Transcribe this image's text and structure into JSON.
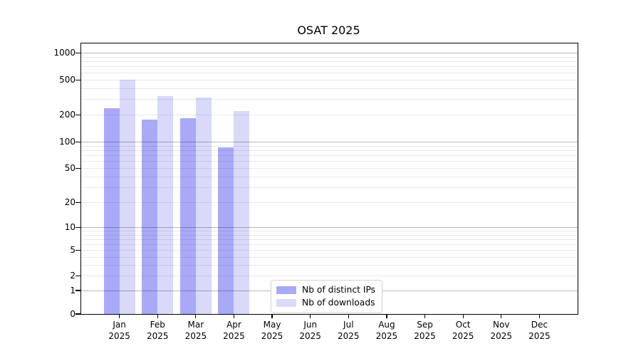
{
  "chart_data": {
    "type": "bar",
    "title": "OSAT 2025",
    "categories": [
      "Jan",
      "Feb",
      "Mar",
      "Apr",
      "May",
      "Jun",
      "Jul",
      "Aug",
      "Sep",
      "Oct",
      "Nov",
      "Dec"
    ],
    "year_label": "2025",
    "series": [
      {
        "name": "Nb of distinct IPs",
        "color": "#a9a9f8",
        "values": [
          240,
          180,
          185,
          87,
          null,
          null,
          null,
          null,
          null,
          null,
          null,
          null
        ]
      },
      {
        "name": "Nb of downloads",
        "color": "#d9d9fa",
        "values": [
          500,
          330,
          315,
          225,
          null,
          null,
          null,
          null,
          null,
          null,
          null,
          null
        ]
      }
    ],
    "yaxis": {
      "scale": "symlog",
      "ticks": [
        0,
        1,
        2,
        5,
        10,
        20,
        50,
        100,
        200,
        500,
        1000
      ],
      "ylim": [
        0,
        1280
      ],
      "grid": true
    },
    "legend_position": "bottom-center-inside",
    "colors": {
      "bar_dark": "#a9a9f8",
      "bar_light": "#d9d9fa",
      "grid_major": "#b8b8b8",
      "grid_minor": "#eaeaea",
      "axis": "#000000",
      "background": "#ffffff"
    }
  }
}
